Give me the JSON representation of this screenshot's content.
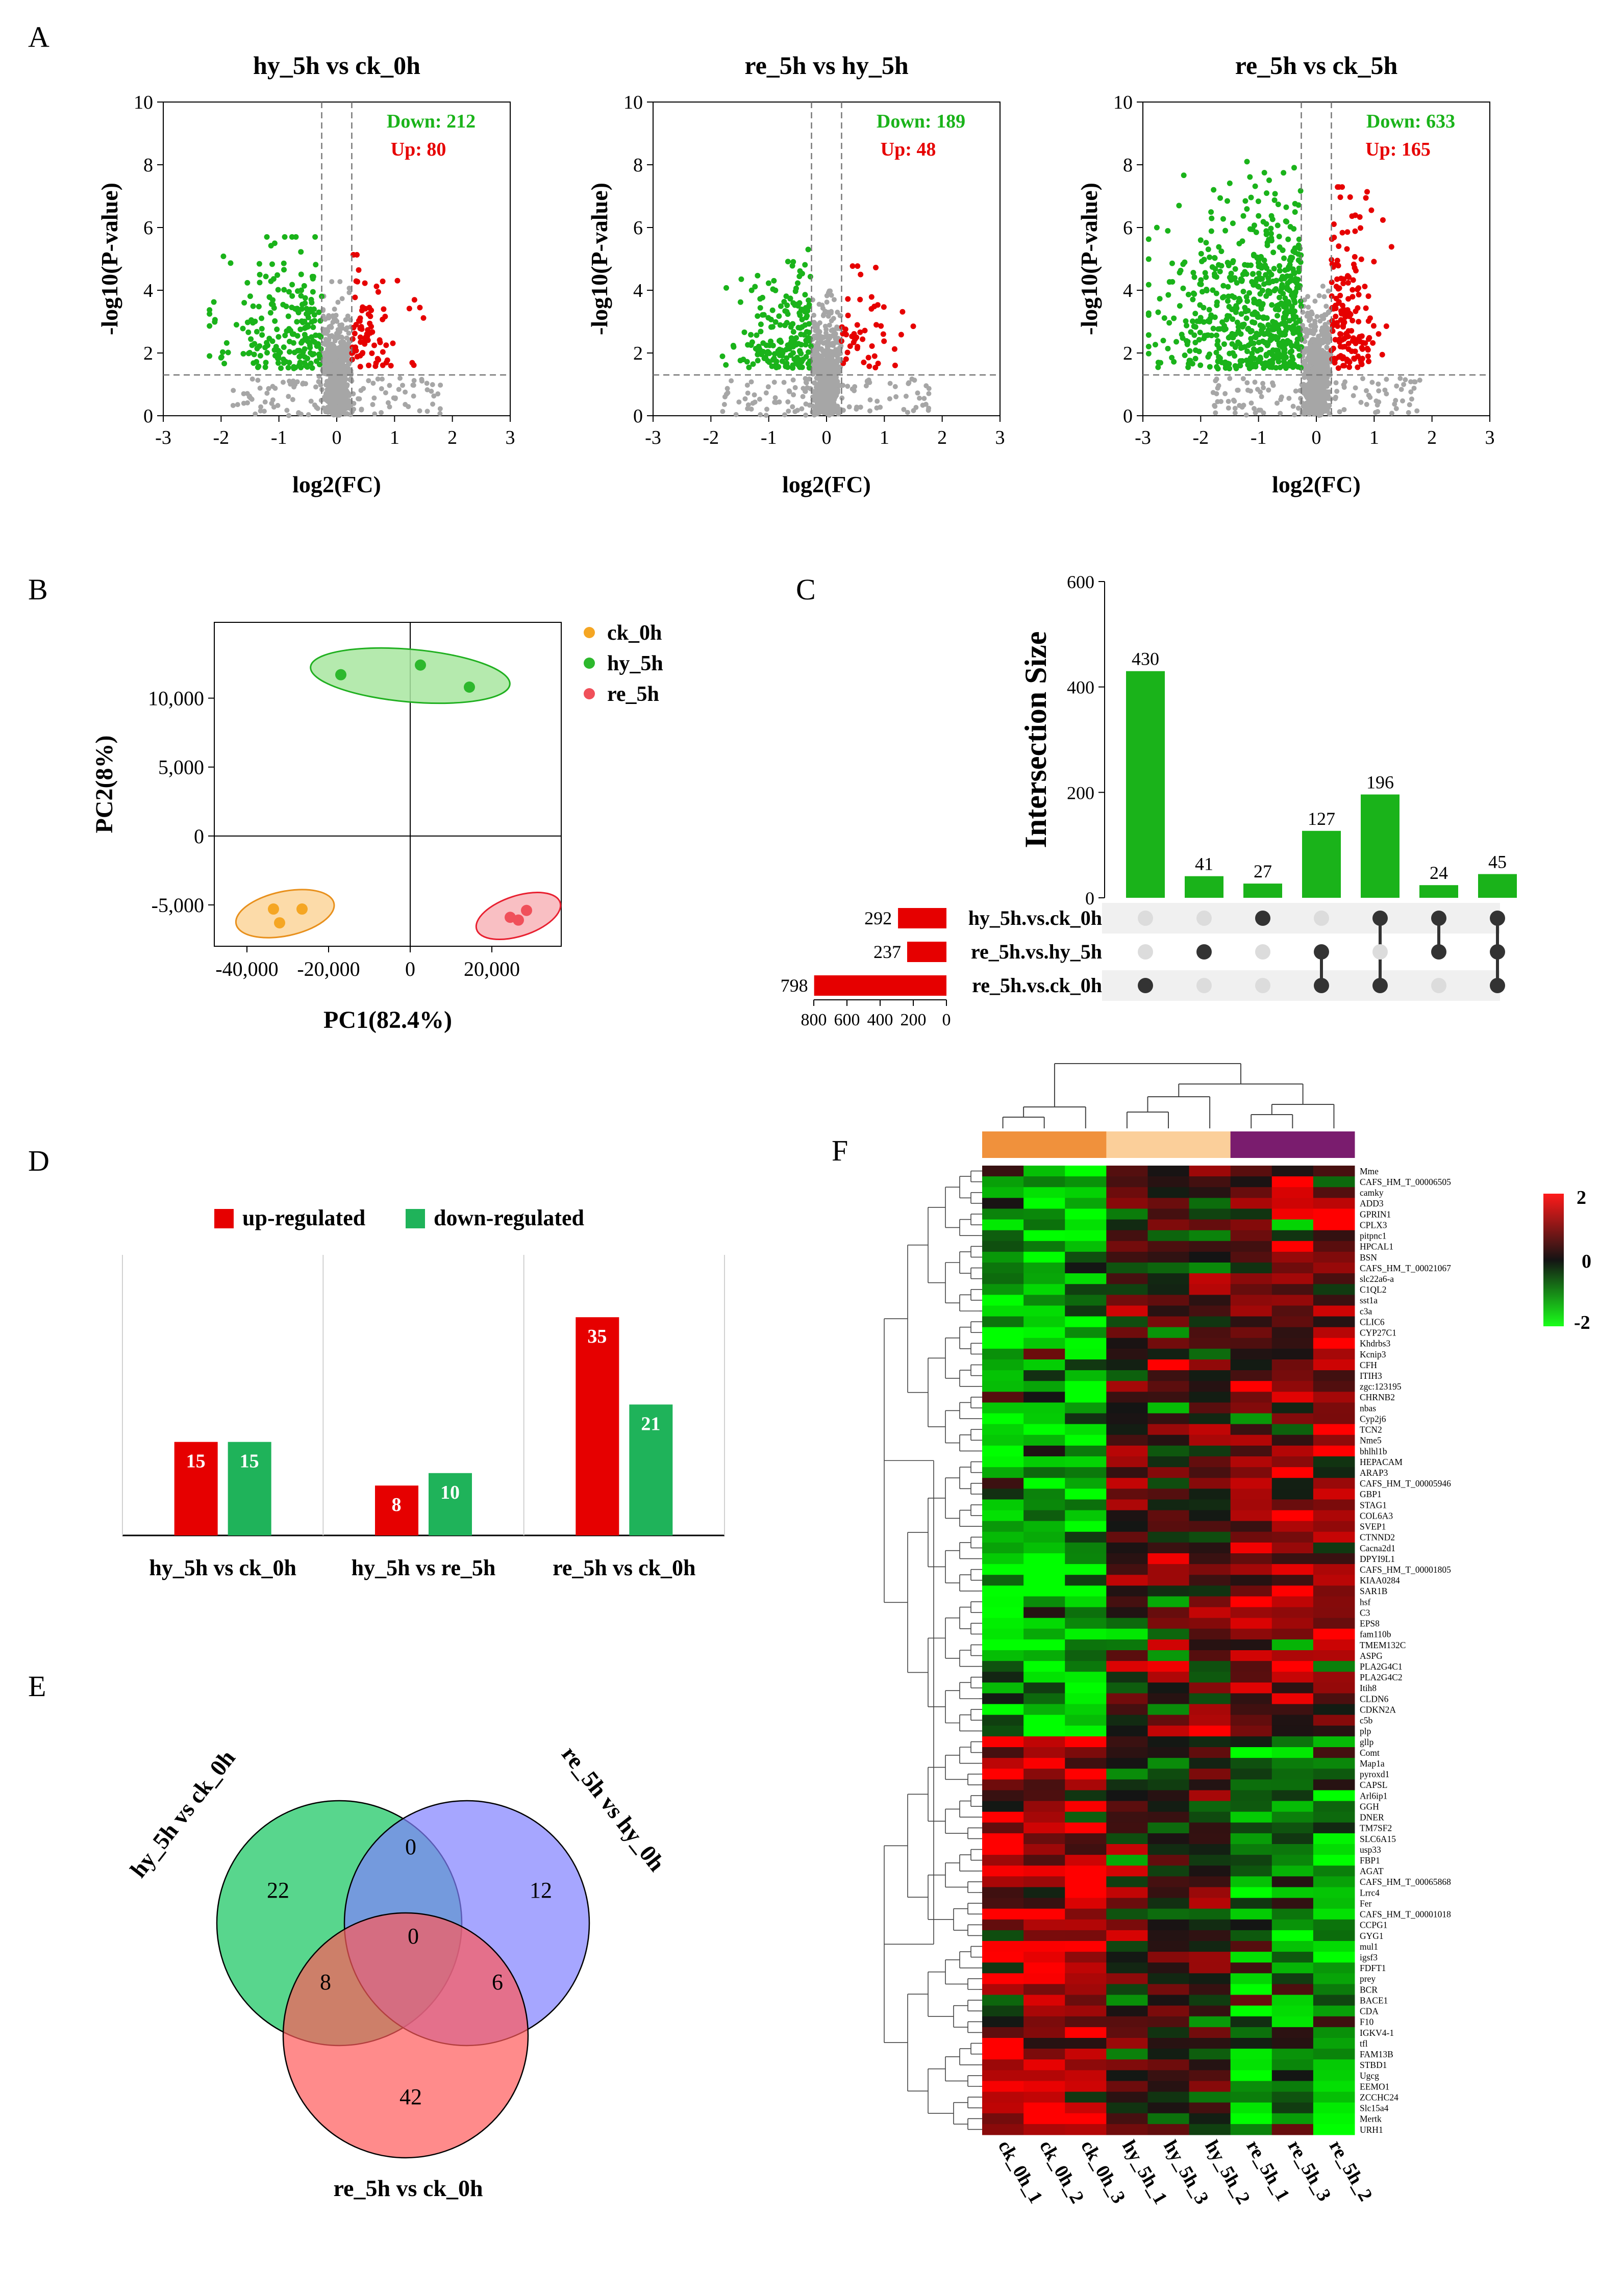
{
  "panels": {
    "A": {
      "letter": "A"
    },
    "B": {
      "letter": "B"
    },
    "C": {
      "letter": "C"
    },
    "D": {
      "letter": "D"
    },
    "E": {
      "letter": "E"
    },
    "F": {
      "letter": "F"
    }
  },
  "colors": {
    "green": "#1ab31a",
    "red": "#e60000",
    "grey": "#a6a6a6",
    "orange": "#f5a623",
    "legend_green": "#2db82d",
    "legend_red": "#f0505a",
    "purple": "#7a1c6e",
    "peach": "#fbcf9a",
    "dark_orange": "#f0913c"
  },
  "chart_data": [
    {
      "id": "A1",
      "type": "scatter",
      "title": "hy_5h vs ck_0h",
      "xlabel": "log2(FC)",
      "ylabel": "-log10(P-value)",
      "xlim": [
        -3,
        3
      ],
      "ylim": [
        0,
        10
      ],
      "xticks": [
        "-3",
        "-2",
        "-1",
        "0",
        "1",
        "2",
        "3"
      ],
      "yticks": [
        "0",
        "2",
        "4",
        "6",
        "8",
        "10"
      ],
      "thresholds": {
        "fc": 0.26,
        "p": 1.3
      },
      "down_label": "Down: 212",
      "up_label": "Up: 80",
      "n_down": 212,
      "n_up": 80,
      "max_down_x": -2.2,
      "max_up_x": 1.5,
      "max_y": 5.7
    },
    {
      "id": "A2",
      "type": "scatter",
      "title": "re_5h vs hy_5h",
      "xlabel": "log2(FC)",
      "ylabel": "-log10(P-value)",
      "xlim": [
        -3,
        3
      ],
      "ylim": [
        0,
        10
      ],
      "xticks": [
        "-3",
        "-2",
        "-1",
        "0",
        "1",
        "2",
        "3"
      ],
      "yticks": [
        "0",
        "2",
        "4",
        "6",
        "8",
        "10"
      ],
      "thresholds": {
        "fc": 0.26,
        "p": 1.3
      },
      "down_label": "Down: 189",
      "up_label": "Up: 48",
      "n_down": 189,
      "n_up": 48,
      "max_down_x": -1.8,
      "max_up_x": 1.5,
      "max_y": 5.3
    },
    {
      "id": "A3",
      "type": "scatter",
      "title": "re_5h vs ck_5h",
      "xlabel": "log2(FC)",
      "ylabel": "-log10(P-value)",
      "xlim": [
        -3,
        3
      ],
      "ylim": [
        0,
        10
      ],
      "xticks": [
        "-3",
        "-2",
        "-1",
        "0",
        "1",
        "2",
        "3"
      ],
      "yticks": [
        "0",
        "2",
        "4",
        "6",
        "8",
        "10"
      ],
      "thresholds": {
        "fc": 0.26,
        "p": 1.3
      },
      "down_label": "Down: 633",
      "up_label": "Up: 165",
      "n_down": 633,
      "n_up": 165,
      "max_down_x": -2.9,
      "max_up_x": 1.3,
      "max_y": 8.1
    },
    {
      "id": "B",
      "type": "scatter",
      "title": "",
      "xlabel": "PC1(82.4%)",
      "ylabel": "PC2(8%)",
      "xlim": [
        -48000,
        37000
      ],
      "ylim": [
        -8000,
        15500
      ],
      "xticks": [
        "-40,000",
        "-20,000",
        "0",
        "20,000"
      ],
      "xtick_values": [
        -40000,
        -20000,
        0,
        20000
      ],
      "yticks": [
        "-5,000",
        "0",
        "5,000",
        "10,000"
      ],
      "ytick_values": [
        -5000,
        0,
        5000,
        10000
      ],
      "legend": [
        "ck_0h",
        "hy_5h",
        "re_5h"
      ],
      "series": [
        {
          "name": "ck_0h",
          "points": [
            [
              -33500,
              -5300
            ],
            [
              -26500,
              -5300
            ],
            [
              -32000,
              -6300
            ]
          ]
        },
        {
          "name": "hy_5h",
          "points": [
            [
              -17000,
              11700
            ],
            [
              2500,
              12400
            ],
            [
              14500,
              10800
            ]
          ]
        },
        {
          "name": "re_5h",
          "points": [
            [
              24500,
              -5900
            ],
            [
              28500,
              -5400
            ],
            [
              26500,
              -6100
            ]
          ]
        }
      ]
    },
    {
      "id": "C",
      "type": "bar",
      "title": "",
      "ylabel": "Intersection Size",
      "ylim": [
        0,
        600
      ],
      "yticks": [
        "0",
        "200",
        "400",
        "600"
      ],
      "values": [
        430,
        41,
        27,
        127,
        196,
        24,
        45
      ],
      "value_labels": [
        "430",
        "41",
        "27",
        "127",
        "196",
        "24",
        "45"
      ],
      "sets": [
        "hy_5h.vs.ck_0h",
        "re_5h.vs.hy_5h",
        "re_5h.vs.ck_0h"
      ],
      "set_sizes": [
        292,
        237,
        798
      ],
      "set_size_labels": [
        "292",
        "237",
        "798"
      ],
      "set_axis_ticks": [
        "800",
        "600",
        "400",
        "200",
        "0"
      ],
      "membership": [
        [
          2
        ],
        [
          1
        ],
        [
          0
        ],
        [
          1,
          2
        ],
        [
          0,
          2
        ],
        [
          0,
          1
        ],
        [
          0,
          1,
          2
        ]
      ]
    },
    {
      "id": "D",
      "type": "bar",
      "title": "",
      "legend": [
        "up-regulated",
        "down-regulated"
      ],
      "categories": [
        "hy_5h vs ck_0h",
        "hy_5h vs re_5h",
        "re_5h vs ck_0h"
      ],
      "series": [
        {
          "name": "up-regulated",
          "values": [
            15,
            8,
            35
          ]
        },
        {
          "name": "down-regulated",
          "values": [
            15,
            10,
            21
          ]
        }
      ],
      "ylim": [
        0,
        45
      ]
    },
    {
      "id": "E",
      "type": "venn",
      "sets": [
        "hy_5h vs ck_0h",
        "re_5h vs hy_0h",
        "re_5h vs ck_0h"
      ],
      "regions": {
        "a_only": "22",
        "b_only": "12",
        "c_only": "42",
        "ab": "0",
        "ac": "8",
        "bc": "6",
        "abc": "0"
      }
    },
    {
      "id": "F",
      "type": "heatmap",
      "columns": [
        "ck_0h_1",
        "ck_0h_2",
        "ck_0h_3",
        "hy_5h_1",
        "hy_5h_3",
        "hy_5h_2",
        "re_5h_1",
        "re_5h_3",
        "re_5h_2"
      ],
      "column_groups": [
        "ck_0h",
        "ck_0h",
        "ck_0h",
        "hy_5h",
        "hy_5h",
        "hy_5h",
        "re_5h",
        "re_5h",
        "re_5h"
      ],
      "rows": [
        "Mme",
        "CAFS_HM_T_00006505",
        "camky",
        "ADD3",
        "GPRIN1",
        "CPLX3",
        "pitpnc1",
        "HPCAL1",
        "BSN",
        "CAFS_HM_T_00021067",
        "slc22a6-a",
        "C1QL2",
        "sst1a",
        "c3a",
        "CLIC6",
        "CYP27C1",
        "Khdrbs3",
        "Kcnip3",
        "CFH",
        "ITIH3",
        "zgc:123195",
        "CHRNB2",
        "nbas",
        "Cyp2j6",
        "TCN2",
        "Nme5",
        "bhlhl1b",
        "HEPACAM",
        "ARAP3",
        "CAFS_HM_T_00005946",
        "GBP1",
        "STAG1",
        "COL6A3",
        "SVEP1",
        "CTNND2",
        "Cacna2d1",
        "DPYI9L1",
        "CAFS_HM_T_00001805",
        "KIAA0284",
        "SAR1B",
        "hsf",
        "C3",
        "EPS8",
        "fam110b",
        "TMEM132C",
        "ASPG",
        "PLA2G4C1",
        "PLA2G4C2",
        "Itih8",
        "CLDN6",
        "CDKN2A",
        "c5b",
        "plp",
        "gllp",
        "Comt",
        "Map1a",
        "pyroxd1",
        "CAPSL",
        "Arl6ip1",
        "GGH",
        "DNER",
        "TM7SF2",
        "SLC6A15",
        "usp33",
        "FBP1",
        "AGAT",
        "CAFS_HM_T_00065868",
        "Lrrc4",
        "Fer",
        "CAFS_HM_T_00001018",
        "CCPG1",
        "GYG1",
        "mul1",
        "igsf3",
        "FDFT1",
        "prey",
        "BCR",
        "BACE1",
        "CDA",
        "F10",
        "IGKV4-1",
        "tfl",
        "FAM13B",
        "STBD1",
        "Ugcg",
        "EEMO1",
        "ZCCHC24",
        "Slc15a4",
        "Mertk",
        "URH1"
      ],
      "scale": [
        "2",
        "0",
        "-2"
      ],
      "vmin": -2,
      "vmax": 2
    }
  ]
}
